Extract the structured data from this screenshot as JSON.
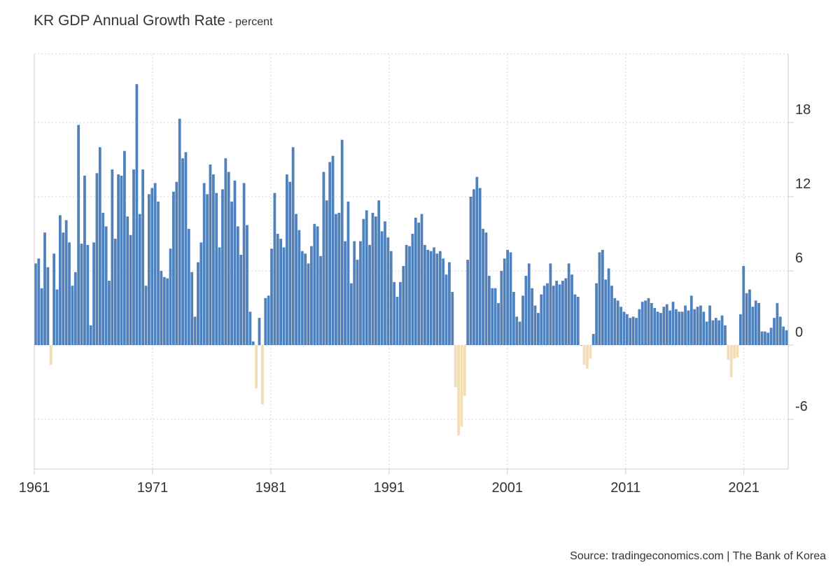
{
  "chart_data": {
    "type": "bar",
    "title": "KR GDP Annual Growth Rate",
    "subtitle": "- percent",
    "ylim": [
      -10,
      22
    ],
    "y_ticks": [
      -6,
      0,
      6,
      12,
      18
    ],
    "x_tick_labels": [
      "1961",
      "1971",
      "1981",
      "1991",
      "2001",
      "2011",
      "2021"
    ],
    "x_range": [
      1961.0,
      2024.75
    ],
    "grid": true,
    "positive_color": "#4f81bd",
    "negative_color": "#f2ddb4",
    "series": [
      {
        "values": [
          6.6,
          7.0,
          4.6,
          9.1,
          6.3,
          -1.6,
          7.4,
          4.5,
          10.5,
          9.1,
          10.1,
          8.3,
          4.8,
          5.9,
          17.8,
          8.2,
          13.7,
          8.1,
          1.6,
          8.3,
          13.9,
          16.0,
          10.7,
          9.6,
          5.2,
          14.2,
          8.6,
          13.8,
          13.7,
          15.7,
          10.4,
          8.9,
          14.2,
          21.1,
          10.6,
          14.2,
          4.8,
          12.2,
          12.7,
          13.1,
          11.6,
          6.0,
          5.5,
          5.4,
          7.8,
          12.4,
          13.2,
          18.3,
          15.1,
          15.6,
          9.4,
          5.9,
          2.3,
          6.7,
          8.3,
          13.1,
          12.2,
          14.6,
          13.8,
          12.3,
          7.9,
          12.6,
          15.1,
          14.0,
          11.6,
          13.3,
          9.6,
          7.3,
          13.1,
          9.7,
          2.7,
          0.3,
          -3.5,
          2.2,
          -4.8,
          3.8,
          4.0,
          7.8,
          12.3,
          9.0,
          8.6,
          7.9,
          13.8,
          13.2,
          16.0,
          10.6,
          9.3,
          7.6,
          7.4,
          6.6,
          8.0,
          9.8,
          9.6,
          7.2,
          14.0,
          11.7,
          14.8,
          15.3,
          10.6,
          10.7,
          16.6,
          8.4,
          11.6,
          5.0,
          8.4,
          6.9,
          8.4,
          10.2,
          10.9,
          8.1,
          10.7,
          10.4,
          11.7,
          9.2,
          10.0,
          8.7,
          7.6,
          5.1,
          3.9,
          5.1,
          6.4,
          8.1,
          8.0,
          9.0,
          10.3,
          9.9,
          10.6,
          8.1,
          7.7,
          7.6,
          7.9,
          7.4,
          7.6,
          7.0,
          5.7,
          6.7,
          4.3,
          -3.4,
          -7.3,
          -6.6,
          -4.1,
          6.9,
          12.0,
          12.6,
          13.6,
          12.7,
          9.4,
          9.1,
          5.6,
          4.6,
          4.6,
          3.4,
          6.0,
          7.0,
          7.7,
          7.5,
          4.3,
          2.3,
          1.9,
          4.0,
          5.6,
          6.6,
          4.6,
          3.2,
          2.6,
          4.1,
          4.8,
          5.0,
          6.6,
          4.8,
          5.2,
          4.9,
          5.2,
          5.4,
          6.6,
          5.7,
          4.1,
          3.9,
          0.0,
          -1.6,
          -1.9,
          -1.1,
          0.9,
          5.0,
          7.5,
          7.7,
          5.3,
          6.2,
          4.8,
          3.8,
          3.6,
          3.1,
          2.7,
          2.5,
          2.2,
          2.3,
          2.2,
          2.9,
          3.5,
          3.6,
          3.8,
          3.4,
          3.0,
          2.7,
          2.6,
          3.1,
          3.3,
          2.8,
          3.5,
          2.9,
          2.7,
          2.7,
          3.2,
          2.8,
          4.0,
          2.9,
          3.1,
          3.2,
          2.7,
          1.9,
          3.2,
          2.0,
          2.2,
          2.0,
          2.4,
          1.6,
          -1.2,
          -2.6,
          -1.1,
          -1.0,
          2.5,
          6.4,
          4.2,
          4.5,
          3.1,
          3.6,
          3.4,
          1.1,
          1.1,
          1.0,
          1.4,
          2.2,
          3.4,
          2.3,
          1.5,
          1.2
        ]
      }
    ]
  },
  "source": "Source: tradingeconomics.com | The Bank of Korea"
}
